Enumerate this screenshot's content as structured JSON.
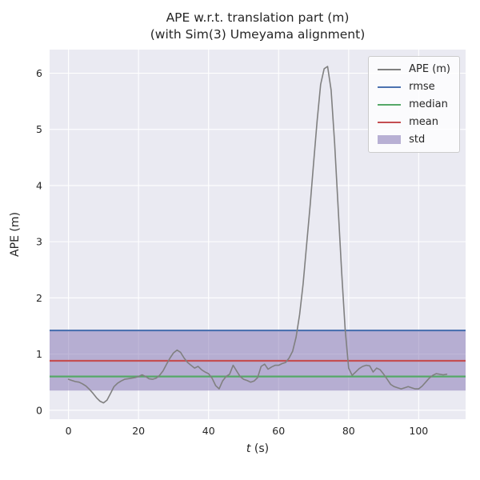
{
  "chart_data": {
    "type": "line",
    "title": "APE w.r.t. translation part (m)",
    "subtitle": "(with Sim(3) Umeyama alignment)",
    "xlabel": "t (s)",
    "xlabel_var": "t",
    "xlabel_unit": " (s)",
    "ylabel": "APE (m)",
    "xlim": [
      -5.4,
      113.4
    ],
    "ylim": [
      -0.16,
      6.42
    ],
    "xticks": [
      0,
      20,
      40,
      60,
      80,
      100
    ],
    "yticks": [
      0,
      1,
      2,
      3,
      4,
      5,
      6
    ],
    "grid": true,
    "legend_position": "upper right",
    "colors": {
      "axes_bg": "#eaeaf2",
      "grid": "#ffffff",
      "text": "#262626"
    },
    "series": [
      {
        "name": "APE (m)",
        "color": "#808080",
        "x": [
          0,
          1,
          2,
          3,
          4,
          5,
          6,
          7,
          8,
          9,
          10,
          11,
          12,
          13,
          14,
          15,
          16,
          17,
          18,
          19,
          20,
          21,
          22,
          23,
          24,
          25,
          26,
          27,
          28,
          29,
          30,
          31,
          32,
          33,
          34,
          35,
          36,
          37,
          38,
          39,
          40,
          41,
          42,
          43,
          44,
          45,
          46,
          47,
          48,
          49,
          50,
          51,
          52,
          53,
          54,
          55,
          56,
          57,
          58,
          59,
          60,
          61,
          62,
          63,
          64,
          65,
          66,
          67,
          68,
          69,
          70,
          71,
          72,
          73,
          74,
          75,
          76,
          77,
          78,
          79,
          80,
          81,
          82,
          83,
          84,
          85,
          86,
          87,
          88,
          89,
          90,
          91,
          92,
          93,
          94,
          95,
          96,
          97,
          98,
          99,
          100,
          101,
          102,
          103,
          104,
          105,
          106,
          107,
          108
        ],
        "y": [
          0.55,
          0.53,
          0.51,
          0.5,
          0.47,
          0.43,
          0.37,
          0.3,
          0.22,
          0.16,
          0.13,
          0.18,
          0.3,
          0.42,
          0.48,
          0.52,
          0.55,
          0.56,
          0.57,
          0.58,
          0.6,
          0.63,
          0.6,
          0.56,
          0.55,
          0.57,
          0.62,
          0.7,
          0.82,
          0.93,
          1.02,
          1.07,
          1.03,
          0.93,
          0.85,
          0.8,
          0.75,
          0.78,
          0.72,
          0.68,
          0.65,
          0.57,
          0.44,
          0.38,
          0.52,
          0.6,
          0.64,
          0.8,
          0.7,
          0.6,
          0.55,
          0.53,
          0.5,
          0.52,
          0.58,
          0.78,
          0.82,
          0.73,
          0.77,
          0.8,
          0.8,
          0.83,
          0.85,
          0.93,
          1.05,
          1.3,
          1.7,
          2.25,
          2.95,
          3.65,
          4.4,
          5.15,
          5.8,
          6.08,
          6.12,
          5.7,
          4.75,
          3.6,
          2.45,
          1.45,
          0.75,
          0.62,
          0.68,
          0.74,
          0.78,
          0.8,
          0.79,
          0.68,
          0.75,
          0.72,
          0.64,
          0.55,
          0.46,
          0.42,
          0.4,
          0.38,
          0.4,
          0.42,
          0.4,
          0.38,
          0.38,
          0.43,
          0.5,
          0.57,
          0.62,
          0.65,
          0.64,
          0.63,
          0.64
        ]
      }
    ],
    "stats": [
      {
        "name": "rmse",
        "value": 1.42,
        "color": "#4c72b0"
      },
      {
        "name": "median",
        "value": 0.6,
        "color": "#55a868"
      },
      {
        "name": "mean",
        "value": 0.88,
        "color": "#c44e52"
      }
    ],
    "std_band": {
      "name": "std",
      "center": 0.88,
      "std": 0.53,
      "color": "#8172b2",
      "alpha": 0.5
    },
    "legend": [
      {
        "label": "APE (m)",
        "swatch": "line",
        "color": "#808080"
      },
      {
        "label": "rmse",
        "swatch": "line",
        "color": "#4c72b0"
      },
      {
        "label": "median",
        "swatch": "line",
        "color": "#55a868"
      },
      {
        "label": "mean",
        "swatch": "line",
        "color": "#c44e52"
      },
      {
        "label": "std",
        "swatch": "patch",
        "color": "#8172b2"
      }
    ]
  }
}
